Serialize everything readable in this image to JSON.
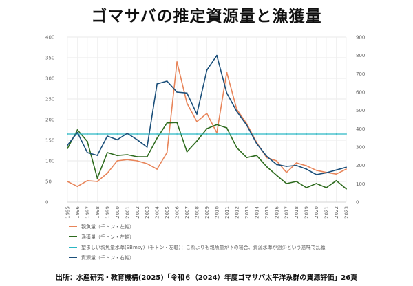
{
  "title": "ゴマサバの推定資源量と漁獲量",
  "source": "出所：水産研究・教育機構(2025)「令和６（2024）年度ゴマサバ太平洋系群の資源評価」26頁",
  "chart_data": {
    "type": "line",
    "x": [
      "1995",
      "1996",
      "1997",
      "1998",
      "1999",
      "2000",
      "2001",
      "2002",
      "2003",
      "2004",
      "2005",
      "2006",
      "2007",
      "2008",
      "2009",
      "2010",
      "2011",
      "2012",
      "2013",
      "2014",
      "2015",
      "2016",
      "2017",
      "2018",
      "2019",
      "2020",
      "2021",
      "2022",
      "2023"
    ],
    "left_axis": {
      "min": 0,
      "max": 400,
      "ticks": [
        0,
        50,
        100,
        150,
        200,
        250,
        300,
        350,
        400
      ]
    },
    "right_axis": {
      "min": 0,
      "max": 900,
      "ticks": [
        0,
        100,
        200,
        300,
        400,
        500,
        600,
        700,
        800,
        900
      ]
    },
    "grid": true,
    "legend_position": "bottom",
    "series": [
      {
        "name": "親魚量（千トン・左軸）",
        "axis": "left",
        "color": "#e8855a",
        "values": [
          50,
          38,
          52,
          50,
          70,
          100,
          103,
          100,
          93,
          80,
          120,
          340,
          240,
          195,
          215,
          168,
          315,
          225,
          190,
          145,
          108,
          100,
          72,
          95,
          88,
          77,
          72,
          68,
          80
        ]
      },
      {
        "name": "漁獲量（千トン・左軸）",
        "axis": "left",
        "color": "#2e6b1e",
        "values": [
          130,
          175,
          147,
          58,
          120,
          113,
          115,
          110,
          110,
          155,
          192,
          193,
          122,
          148,
          178,
          188,
          180,
          132,
          108,
          113,
          86,
          65,
          45,
          50,
          35,
          45,
          35,
          52,
          32
        ]
      },
      {
        "name": "望ましい親魚量水準(SBmsy)（千トン・左軸）：これよりも親魚量が下の場合、資源水準が過少という意味で乱獲",
        "axis": "left",
        "color": "#2bb7c4",
        "values": [
          165,
          165,
          165,
          165,
          165,
          165,
          165,
          165,
          165,
          165,
          165,
          165,
          165,
          165,
          165,
          165,
          165,
          165,
          165,
          165,
          165,
          165,
          165,
          165,
          165,
          165,
          165,
          165,
          165
        ]
      },
      {
        "name": "資源量（千トン・右軸）",
        "axis": "right",
        "color": "#1b4f7a",
        "values": [
          310,
          380,
          270,
          255,
          360,
          340,
          375,
          340,
          300,
          645,
          660,
          600,
          595,
          480,
          720,
          800,
          595,
          495,
          420,
          320,
          250,
          205,
          195,
          200,
          180,
          150,
          160,
          175,
          190
        ]
      }
    ]
  }
}
